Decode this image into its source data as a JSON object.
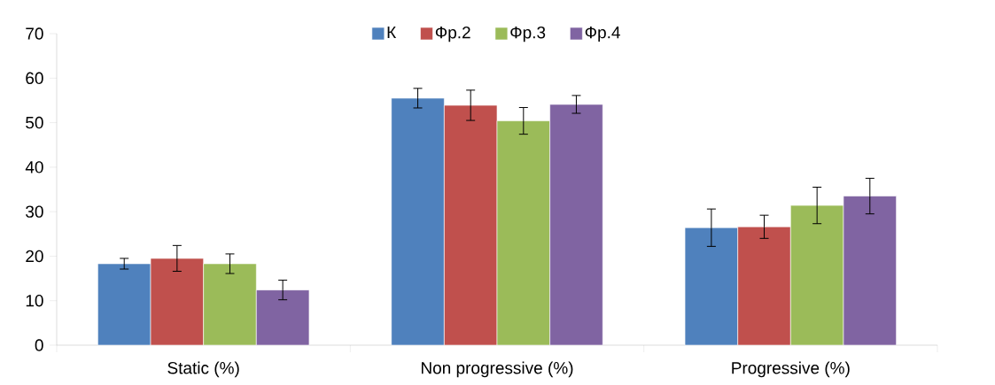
{
  "chart_data": {
    "type": "bar",
    "categories": [
      "Static (%)",
      "Non progressive (%)",
      "Progressive (%)"
    ],
    "series": [
      {
        "name": "К",
        "color": "#4f81bd",
        "values": [
          18.3,
          55.5,
          26.4
        ],
        "errors": [
          1.2,
          2.2,
          4.2
        ]
      },
      {
        "name": "Фр.2",
        "color": "#c0504d",
        "values": [
          19.5,
          53.9,
          26.6
        ],
        "errors": [
          2.9,
          3.4,
          2.6
        ]
      },
      {
        "name": "Фр.3",
        "color": "#9bbb59",
        "values": [
          18.3,
          50.4,
          31.4
        ],
        "errors": [
          2.2,
          3.0,
          4.1
        ]
      },
      {
        "name": "Фр.4",
        "color": "#8064a2",
        "values": [
          12.4,
          54.1,
          33.5
        ],
        "errors": [
          2.2,
          2.0,
          4.0
        ]
      }
    ],
    "ylim": [
      0,
      70
    ],
    "yticks": [
      0,
      10,
      20,
      30,
      40,
      50,
      60,
      70
    ],
    "legend": "top",
    "grid": false
  }
}
